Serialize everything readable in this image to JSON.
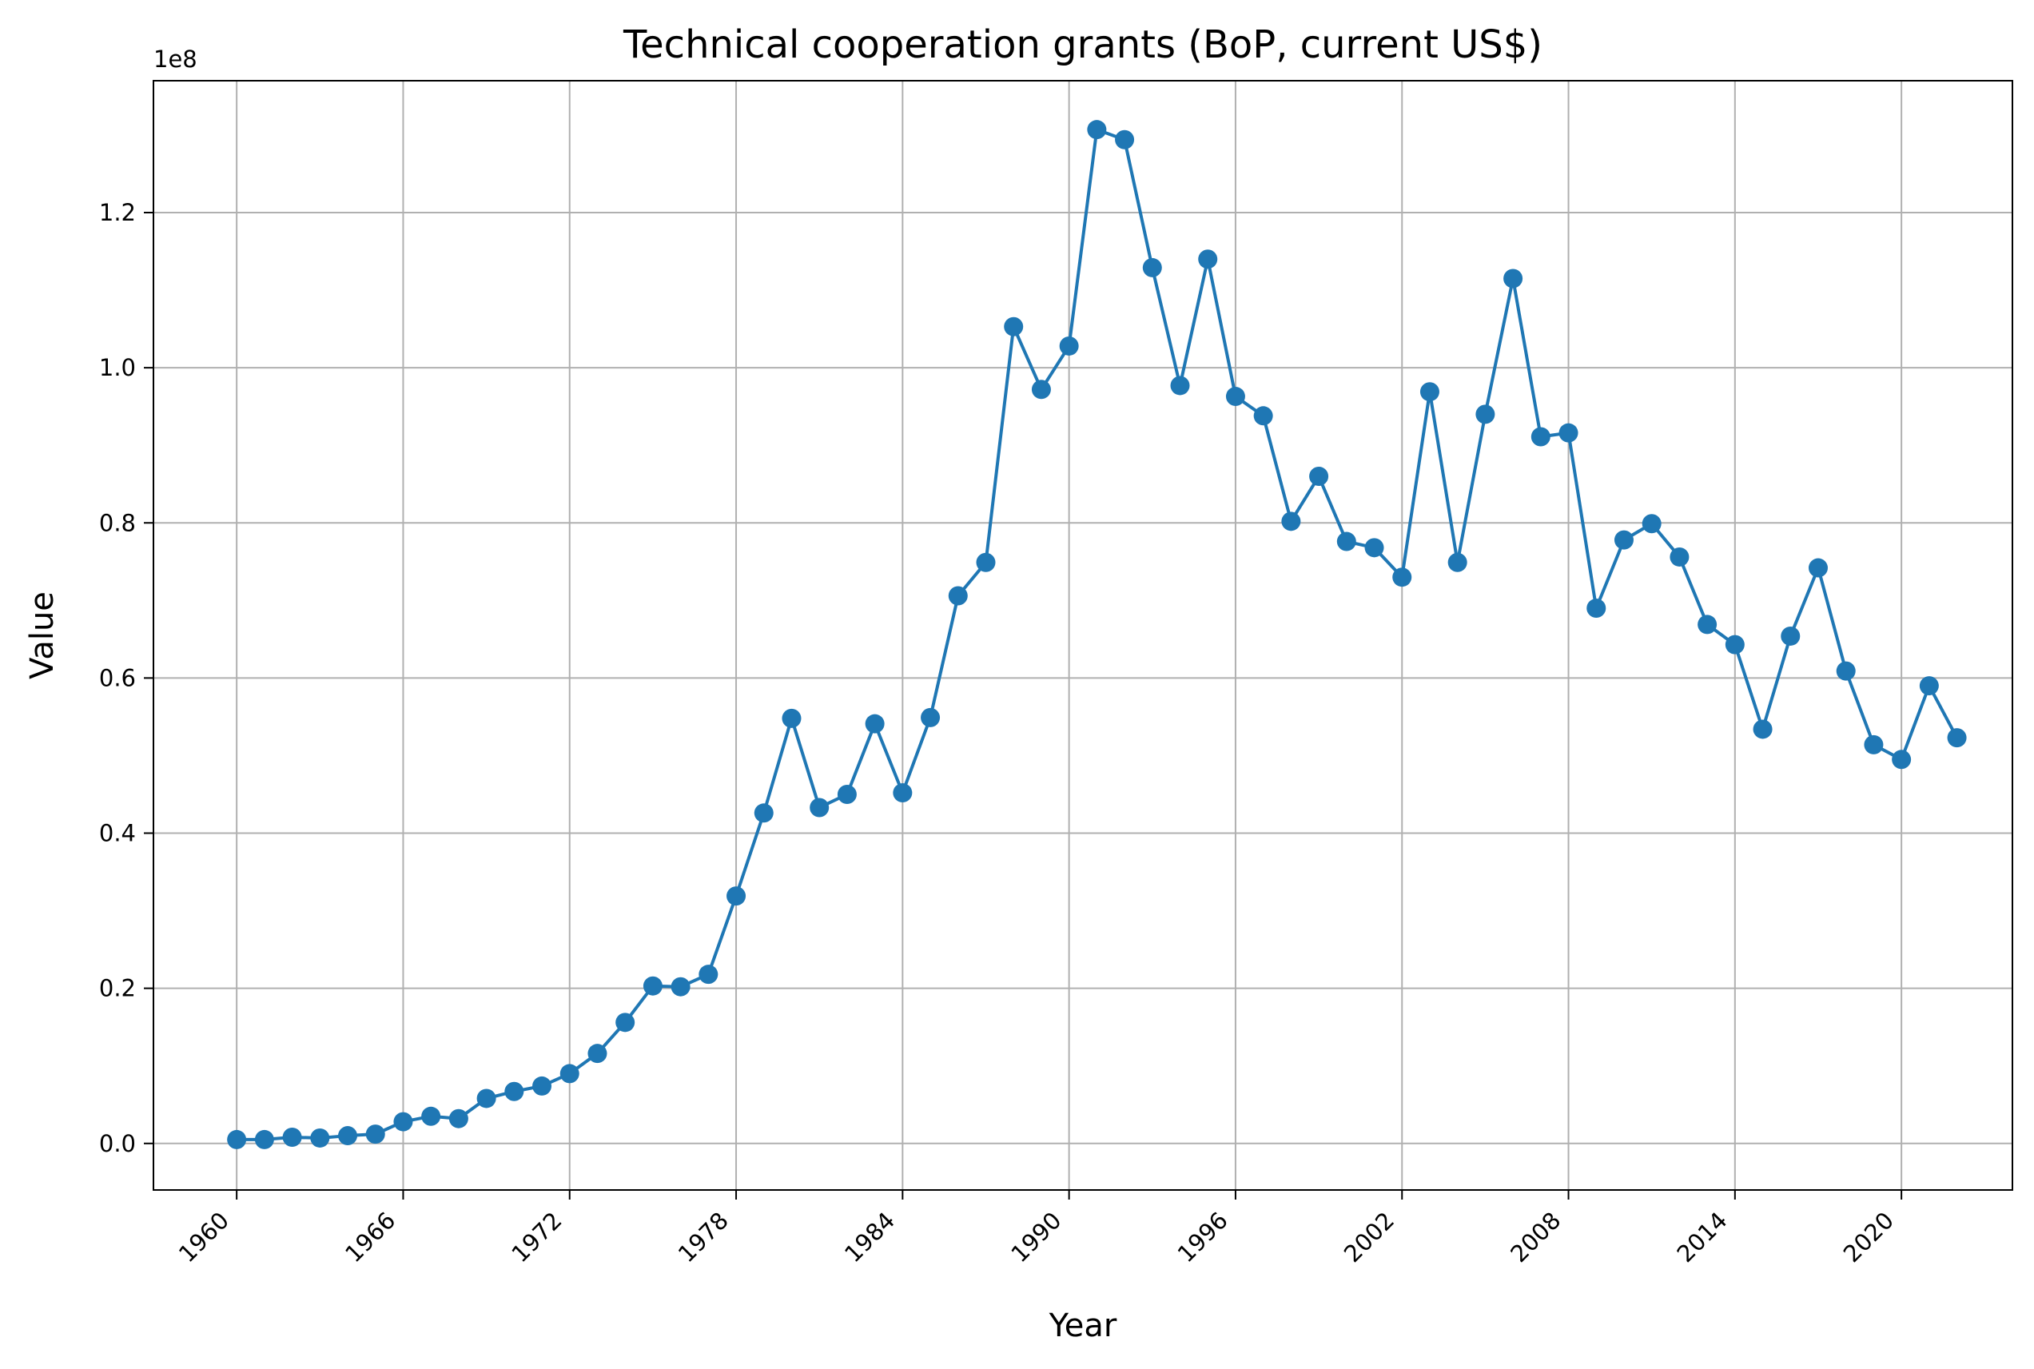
{
  "chart_data": {
    "type": "line",
    "title": "Technical cooperation grants (BoP, current US$)",
    "xlabel": "Year",
    "ylabel": "Value",
    "offset_label": "1e8",
    "xlim": [
      1957,
      2024
    ],
    "ylim": [
      -6000000,
      137000000
    ],
    "grid": true,
    "legend": "none",
    "color": "#1f77b4",
    "x_ticks": [
      1960,
      1966,
      1972,
      1978,
      1984,
      1990,
      1996,
      2002,
      2008,
      2014,
      2020
    ],
    "x_tick_labels": [
      "1960",
      "1966",
      "1972",
      "1978",
      "1984",
      "1990",
      "1996",
      "2002",
      "2008",
      "2014",
      "2020"
    ],
    "y_ticks": [
      0,
      20000000,
      40000000,
      60000000,
      80000000,
      100000000,
      120000000
    ],
    "y_tick_labels": [
      "0.0",
      "0.2",
      "0.4",
      "0.6",
      "0.8",
      "1.0",
      "1.2"
    ],
    "series": [
      {
        "x": [
          1960,
          1961,
          1962,
          1963,
          1964,
          1965,
          1966,
          1967,
          1968,
          1969,
          1970,
          1971,
          1972,
          1973,
          1974,
          1975,
          1976,
          1977,
          1978,
          1979,
          1980,
          1981,
          1982,
          1983,
          1984,
          1985,
          1986,
          1987,
          1988,
          1989,
          1990,
          1991,
          1992,
          1993,
          1994,
          1995,
          1996,
          1997,
          1998,
          1999,
          2000,
          2001,
          2002,
          2003,
          2004,
          2005,
          2006,
          2007,
          2008,
          2009,
          2010,
          2011,
          2012,
          2013,
          2014,
          2015,
          2016,
          2017,
          2018,
          2019,
          2020,
          2021,
          2022
        ],
        "values": [
          500000,
          500000,
          800000,
          700000,
          1000000,
          1200000,
          2800000,
          3500000,
          3200000,
          5800000,
          6700000,
          7400000,
          9000000,
          11600000,
          15600000,
          20300000,
          20200000,
          21800000,
          31900000,
          42600000,
          54800000,
          43300000,
          45000000,
          54100000,
          45200000,
          54900000,
          70600000,
          74900000,
          105300000,
          97200000,
          102800000,
          130700000,
          129400000,
          112900000,
          97700000,
          114000000,
          96300000,
          93800000,
          80200000,
          86000000,
          77600000,
          76800000,
          73000000,
          96900000,
          74900000,
          94000000,
          111500000,
          91100000,
          91600000,
          69000000,
          77800000,
          79900000,
          75600000,
          66900000,
          64300000,
          53400000,
          65400000,
          74200000,
          60900000,
          51400000,
          49500000,
          59000000,
          52300000
        ]
      }
    ]
  }
}
